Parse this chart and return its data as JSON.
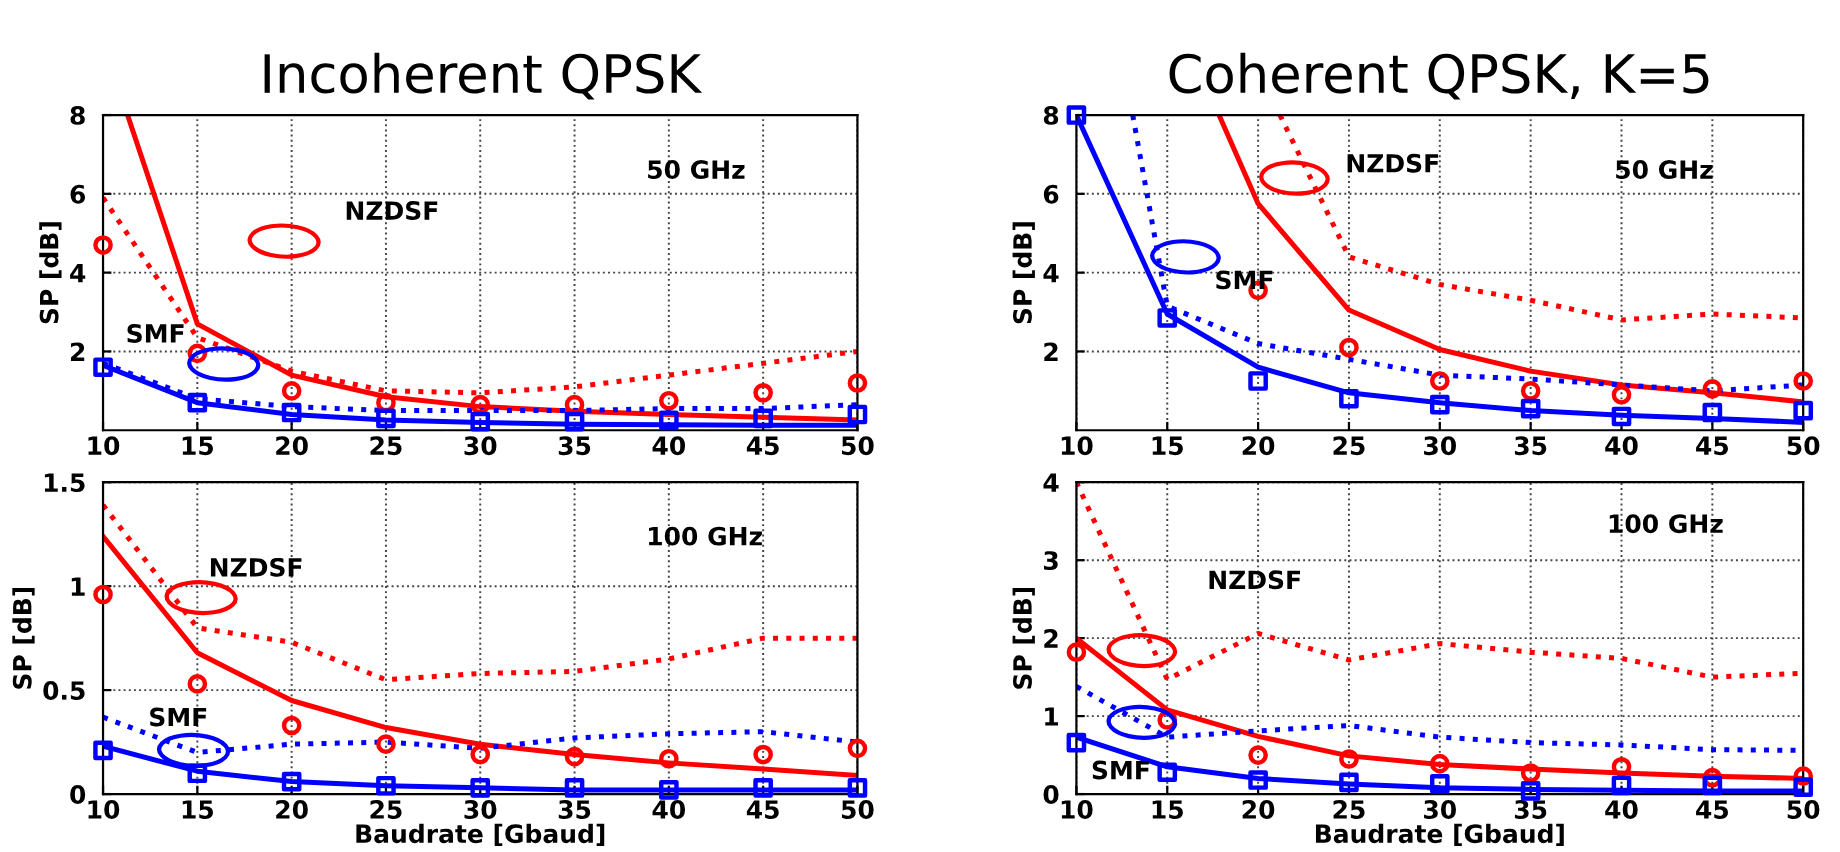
{
  "chart_data": [
    {
      "type": "line",
      "title": "Incoherent QPSK",
      "ylabel": "SP [dB]",
      "xlim": [
        10,
        50
      ],
      "ylim": [
        0,
        8
      ],
      "xticks": [
        10,
        15,
        20,
        25,
        30,
        35,
        40,
        45,
        50
      ],
      "yticks": [
        2,
        4,
        6,
        8
      ],
      "grid": true,
      "annotations": [
        "50 GHz",
        "NZDSF",
        "SMF"
      ],
      "series": [
        {
          "type": "line",
          "color": "#ff0000",
          "line_style": "solid",
          "marker": "none",
          "x": [
            11.3,
            15,
            20,
            25,
            30,
            35,
            40,
            45,
            50
          ],
          "values": [
            8,
            2.7,
            1.4,
            0.85,
            0.6,
            0.48,
            0.4,
            0.33,
            0.26
          ]
        },
        {
          "type": "line",
          "color": "#ff0000",
          "line_style": "dotted",
          "marker": "none",
          "x": [
            10,
            15,
            20,
            25,
            30,
            35,
            40,
            45,
            50
          ],
          "values": [
            5.9,
            2.35,
            1.5,
            1.0,
            0.95,
            1.1,
            1.4,
            1.7,
            2.0
          ]
        },
        {
          "type": "scatter",
          "color": "#ff0000",
          "marker": "circle",
          "x": [
            10,
            15,
            20,
            25,
            30,
            35,
            40,
            45,
            50
          ],
          "values": [
            4.7,
            1.95,
            1.0,
            0.7,
            0.65,
            0.65,
            0.75,
            0.95,
            1.2
          ]
        },
        {
          "type": "line",
          "color": "#0000ff",
          "line_style": "solid",
          "marker": "none",
          "x": [
            10,
            15,
            20,
            25,
            30,
            35,
            40,
            45,
            50
          ],
          "values": [
            1.65,
            0.7,
            0.4,
            0.26,
            0.2,
            0.15,
            0.14,
            0.13,
            0.13
          ]
        },
        {
          "type": "line",
          "color": "#0000ff",
          "line_style": "dotted",
          "marker": "none",
          "x": [
            10,
            15,
            20,
            25,
            30,
            35,
            40,
            45,
            50
          ],
          "values": [
            1.7,
            0.8,
            0.6,
            0.5,
            0.5,
            0.5,
            0.55,
            0.55,
            0.65
          ]
        },
        {
          "type": "scatter",
          "color": "#0000ff",
          "marker": "square",
          "x": [
            10,
            15,
            20,
            25,
            30,
            35,
            40,
            45,
            50
          ],
          "values": [
            1.6,
            0.7,
            0.45,
            0.3,
            0.22,
            0.22,
            0.25,
            0.3,
            0.4
          ]
        }
      ]
    },
    {
      "type": "line",
      "title": "Coherent QPSK, K=5",
      "ylabel": "SP [dB]",
      "xlim": [
        10,
        50
      ],
      "ylim": [
        0,
        8
      ],
      "xticks": [
        10,
        15,
        20,
        25,
        30,
        35,
        40,
        45,
        50
      ],
      "yticks": [
        2,
        4,
        6,
        8
      ],
      "grid": true,
      "annotations": [
        "50 GHz",
        "NZDSF",
        "SMF"
      ],
      "series": [
        {
          "type": "line",
          "color": "#ff0000",
          "line_style": "solid",
          "marker": "none",
          "x": [
            17.85,
            20,
            25,
            30,
            35,
            40,
            45,
            50
          ],
          "values": [
            8,
            5.75,
            3.05,
            2.05,
            1.5,
            1.15,
            0.95,
            0.72
          ]
        },
        {
          "type": "line",
          "color": "#ff0000",
          "line_style": "dotted",
          "marker": "none",
          "x": [
            21.2,
            25,
            30,
            35,
            40,
            45,
            50
          ],
          "values": [
            8,
            4.4,
            3.7,
            3.3,
            2.8,
            2.95,
            2.85
          ]
        },
        {
          "type": "scatter",
          "color": "#ff0000",
          "marker": "circle",
          "x": [
            20,
            25,
            30,
            35,
            40,
            45,
            50
          ],
          "values": [
            3.55,
            2.1,
            1.25,
            1.0,
            0.9,
            1.05,
            1.25
          ]
        },
        {
          "type": "line",
          "color": "#0000ff",
          "line_style": "solid",
          "marker": "none",
          "x": [
            10,
            15,
            20,
            25,
            30,
            35,
            40,
            45,
            50
          ],
          "values": [
            8,
            2.95,
            1.6,
            0.95,
            0.7,
            0.5,
            0.38,
            0.3,
            0.2
          ]
        },
        {
          "type": "line",
          "color": "#0000ff",
          "line_style": "dotted",
          "marker": "none",
          "x": [
            13.1,
            15,
            20,
            25,
            30,
            35,
            40,
            45,
            50
          ],
          "values": [
            8,
            3.15,
            2.2,
            1.8,
            1.4,
            1.3,
            1.15,
            1.0,
            1.15
          ]
        },
        {
          "type": "scatter",
          "color": "#0000ff",
          "marker": "square",
          "x": [
            10,
            15,
            20,
            25,
            30,
            35,
            40,
            45,
            50
          ],
          "values": [
            8,
            2.85,
            1.25,
            0.8,
            0.65,
            0.55,
            0.35,
            0.45,
            0.5
          ]
        }
      ]
    },
    {
      "type": "line",
      "xlabel": "Baudrate [Gbaud]",
      "ylabel": "SP [dB]",
      "xlim": [
        10,
        50
      ],
      "ylim": [
        0,
        1.5
      ],
      "xticks": [
        10,
        15,
        20,
        25,
        30,
        35,
        40,
        45,
        50
      ],
      "yticks": [
        0,
        0.5,
        1,
        1.5
      ],
      "grid": true,
      "annotations": [
        "100 GHz",
        "NZDSF",
        "SMF"
      ],
      "series": [
        {
          "type": "line",
          "color": "#ff0000",
          "line_style": "solid",
          "marker": "none",
          "x": [
            10,
            15,
            20,
            25,
            30,
            35,
            40,
            45,
            50
          ],
          "values": [
            1.24,
            0.68,
            0.45,
            0.32,
            0.24,
            0.19,
            0.15,
            0.12,
            0.09
          ]
        },
        {
          "type": "line",
          "color": "#ff0000",
          "line_style": "dotted",
          "marker": "none",
          "x": [
            10,
            15,
            20,
            25,
            30,
            35,
            40,
            45,
            50
          ],
          "values": [
            1.39,
            0.8,
            0.73,
            0.55,
            0.58,
            0.59,
            0.65,
            0.75,
            0.75
          ]
        },
        {
          "type": "scatter",
          "color": "#ff0000",
          "marker": "circle",
          "x": [
            10,
            15,
            20,
            25,
            30,
            35,
            40,
            45,
            50
          ],
          "values": [
            0.96,
            0.53,
            0.33,
            0.24,
            0.19,
            0.18,
            0.17,
            0.19,
            0.22
          ]
        },
        {
          "type": "line",
          "color": "#0000ff",
          "line_style": "solid",
          "marker": "none",
          "x": [
            10,
            15,
            20,
            25,
            30,
            35,
            40,
            45,
            50
          ],
          "values": [
            0.23,
            0.11,
            0.06,
            0.04,
            0.03,
            0.02,
            0.02,
            0.02,
            0.02
          ]
        },
        {
          "type": "line",
          "color": "#0000ff",
          "line_style": "dotted",
          "marker": "none",
          "x": [
            10,
            15,
            20,
            25,
            30,
            35,
            40,
            45,
            50
          ],
          "values": [
            0.37,
            0.2,
            0.24,
            0.25,
            0.22,
            0.27,
            0.29,
            0.3,
            0.25
          ]
        },
        {
          "type": "scatter",
          "color": "#0000ff",
          "marker": "square",
          "x": [
            10,
            15,
            20,
            25,
            30,
            35,
            40,
            45,
            50
          ],
          "values": [
            0.21,
            0.1,
            0.06,
            0.04,
            0.03,
            0.03,
            0.02,
            0.03,
            0.03
          ]
        }
      ]
    },
    {
      "type": "line",
      "xlabel": "Baudrate [Gbaud]",
      "ylabel": "SP [dB]",
      "xlim": [
        10,
        50
      ],
      "ylim": [
        0,
        4
      ],
      "xticks": [
        10,
        15,
        20,
        25,
        30,
        35,
        40,
        45,
        50
      ],
      "yticks": [
        0,
        1,
        2,
        3,
        4
      ],
      "grid": true,
      "annotations": [
        "100 GHz",
        "NZDSF",
        "SMF"
      ],
      "series": [
        {
          "type": "line",
          "color": "#ff0000",
          "line_style": "solid",
          "marker": "none",
          "x": [
            10,
            15,
            20,
            25,
            30,
            35,
            40,
            45,
            50
          ],
          "values": [
            2.0,
            1.08,
            0.74,
            0.49,
            0.38,
            0.32,
            0.27,
            0.23,
            0.2
          ]
        },
        {
          "type": "line",
          "color": "#ff0000",
          "line_style": "dotted",
          "marker": "none",
          "x": [
            10,
            15,
            20,
            25,
            30,
            35,
            40,
            45,
            50
          ],
          "values": [
            4.0,
            1.47,
            2.06,
            1.72,
            1.93,
            1.82,
            1.74,
            1.5,
            1.55
          ]
        },
        {
          "type": "scatter",
          "color": "#ff0000",
          "marker": "circle",
          "x": [
            10,
            15,
            20,
            25,
            30,
            35,
            40,
            45,
            50
          ],
          "values": [
            1.82,
            0.95,
            0.5,
            0.45,
            0.39,
            0.27,
            0.35,
            0.21,
            0.23
          ]
        },
        {
          "type": "line",
          "color": "#0000ff",
          "line_style": "solid",
          "marker": "none",
          "x": [
            10,
            15,
            20,
            25,
            30,
            35,
            40,
            45,
            50
          ],
          "values": [
            0.73,
            0.35,
            0.2,
            0.13,
            0.08,
            0.06,
            0.05,
            0.04,
            0.04
          ]
        },
        {
          "type": "line",
          "color": "#0000ff",
          "line_style": "dotted",
          "marker": "none",
          "x": [
            10,
            15,
            20,
            25,
            30,
            35,
            40,
            45,
            50
          ],
          "values": [
            1.38,
            0.73,
            0.81,
            0.88,
            0.73,
            0.66,
            0.63,
            0.57,
            0.56
          ]
        },
        {
          "type": "scatter",
          "color": "#0000ff",
          "marker": "square",
          "x": [
            10,
            15,
            20,
            25,
            30,
            35,
            40,
            45,
            50
          ],
          "values": [
            0.66,
            0.28,
            0.18,
            0.15,
            0.13,
            0.04,
            0.11,
            0.11,
            0.09
          ]
        }
      ]
    }
  ]
}
